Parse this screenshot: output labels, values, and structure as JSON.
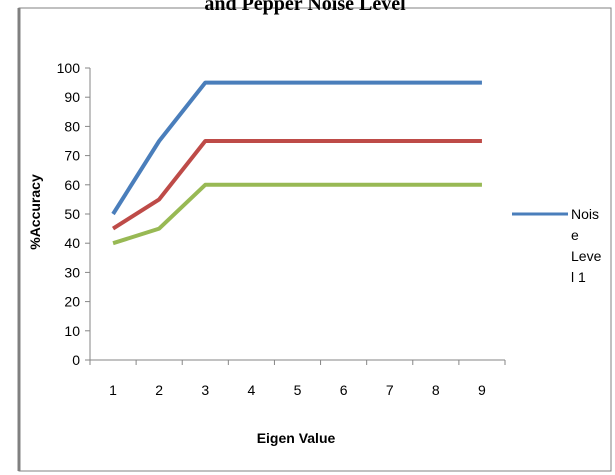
{
  "chart_data": {
    "type": "line",
    "title": "and Pepper Noise Level",
    "xlabel": "Eigen Value",
    "ylabel": "%Accuracy",
    "x": [
      1,
      2,
      3,
      4,
      5,
      6,
      7,
      8,
      9
    ],
    "xticks": [
      "1",
      "2",
      "3",
      "4",
      "5",
      "6",
      "7",
      "8",
      "9"
    ],
    "ylim": [
      0,
      100
    ],
    "yticks": [
      "0",
      "10",
      "20",
      "30",
      "40",
      "50",
      "60",
      "70",
      "80",
      "90",
      "100"
    ],
    "grid": false,
    "legend_position": "right",
    "legend_label_lines": [
      "Nois",
      "e",
      "Leve",
      "l 1"
    ],
    "series": [
      {
        "name": "Noise Level 1",
        "color": "#4a7ebb",
        "values": [
          50,
          75,
          95,
          95,
          95,
          95,
          95,
          95,
          95
        ]
      },
      {
        "color": "#be4b48",
        "values": [
          45,
          55,
          75,
          75,
          75,
          75,
          75,
          75,
          75
        ]
      },
      {
        "color": "#98b954",
        "values": [
          40,
          45,
          60,
          60,
          60,
          60,
          60,
          60,
          60
        ]
      }
    ]
  }
}
